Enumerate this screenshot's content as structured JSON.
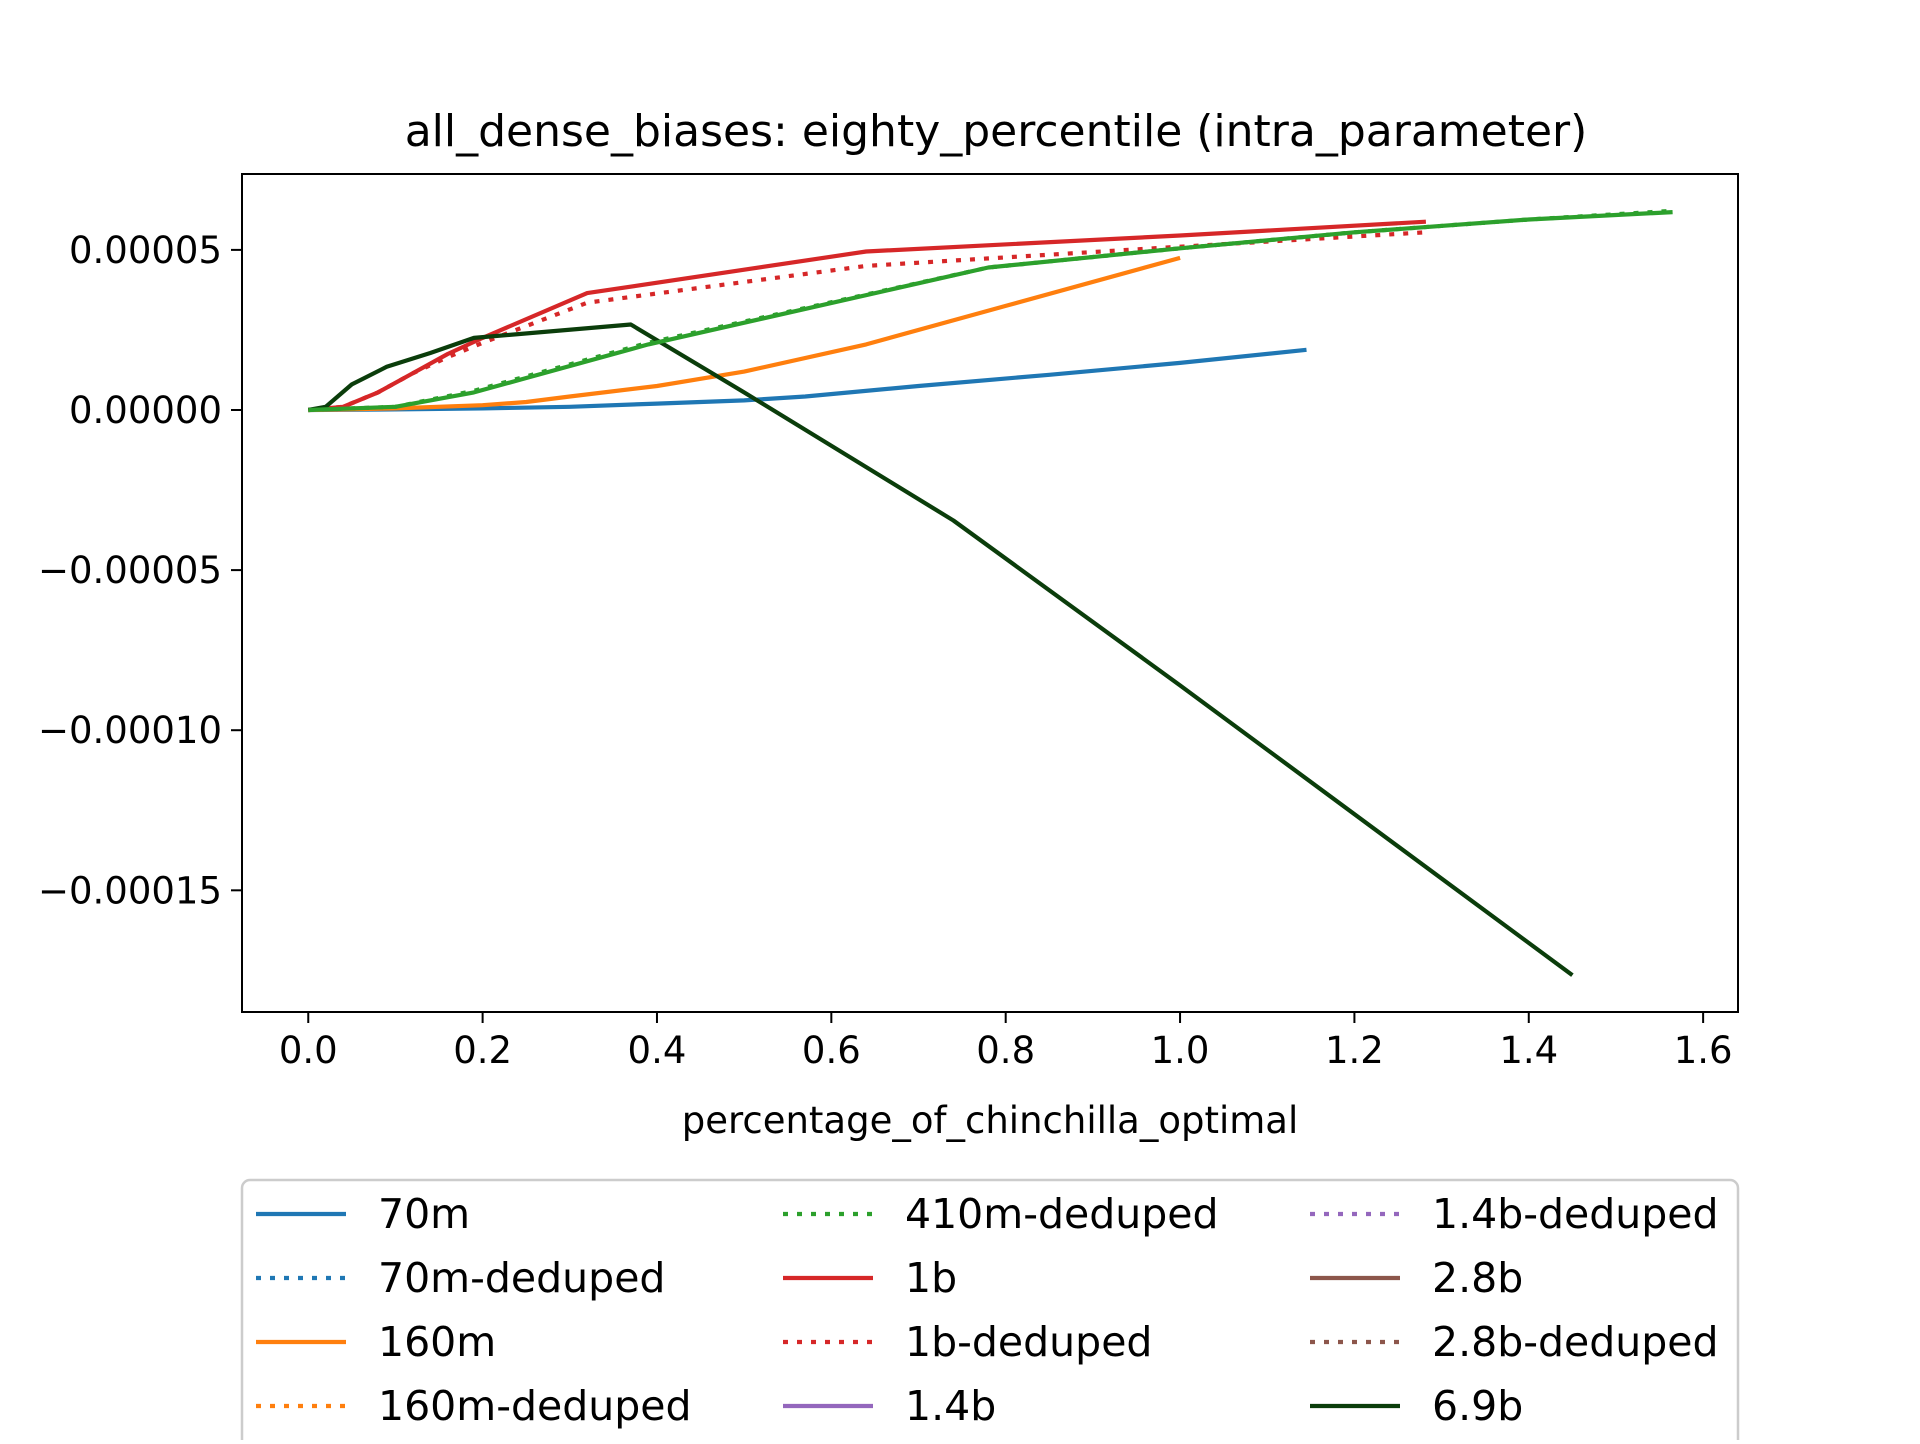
{
  "chart_data": {
    "type": "line",
    "title": "all_dense_biases: eighty_percentile (intra_parameter)",
    "xlabel": "percentage_of_chinchilla_optimal",
    "ylabel": "",
    "xlim": [
      -0.076,
      1.64
    ],
    "ylim": [
      -0.000188,
      7.37e-05
    ],
    "x_ticks": [
      {
        "value": 0.0,
        "label": "0.0"
      },
      {
        "value": 0.2,
        "label": "0.2"
      },
      {
        "value": 0.4,
        "label": "0.4"
      },
      {
        "value": 0.6,
        "label": "0.6"
      },
      {
        "value": 0.8,
        "label": "0.8"
      },
      {
        "value": 1.0,
        "label": "1.0"
      },
      {
        "value": 1.2,
        "label": "1.2"
      },
      {
        "value": 1.4,
        "label": "1.4"
      },
      {
        "value": 1.6,
        "label": "1.6"
      }
    ],
    "y_ticks": [
      {
        "value": 5e-05,
        "label": "0.00005"
      },
      {
        "value": 0.0,
        "label": "0.00000"
      },
      {
        "value": -5e-05,
        "label": "−0.00005"
      },
      {
        "value": -0.0001,
        "label": "−0.00010"
      },
      {
        "value": -0.00015,
        "label": "−0.00015"
      }
    ],
    "grid": false,
    "legend_position": "below",
    "series": [
      {
        "name": "70m",
        "color": "#1f77b4",
        "dash": "solid",
        "x": [
          0,
          0.1,
          0.2,
          0.3,
          0.4,
          0.5,
          0.57,
          0.7,
          0.85,
          1.0,
          1.145
        ],
        "y": [
          0,
          2e-07,
          5e-07,
          1e-06,
          2e-06,
          3e-06,
          4.2e-06,
          7.5e-06,
          1.1e-05,
          1.47e-05,
          1.88e-05
        ]
      },
      {
        "name": "70m-deduped",
        "color": "#1f77b4",
        "dash": "dotted",
        "x": [],
        "y": []
      },
      {
        "name": "160m",
        "color": "#ff7f0e",
        "dash": "solid",
        "x": [
          0,
          0.1,
          0.2,
          0.25,
          0.3,
          0.4,
          0.5,
          0.64,
          0.8,
          1.0
        ],
        "y": [
          0,
          5e-07,
          1.5e-06,
          2.5e-06,
          4.2e-06,
          7.5e-06,
          1.2e-05,
          2.05e-05,
          3.25e-05,
          4.75e-05
        ]
      },
      {
        "name": "160m-deduped",
        "color": "#ff7f0e",
        "dash": "dotted",
        "x": [],
        "y": []
      },
      {
        "name": "410m-deduped",
        "color": "#2ca02c",
        "dash": "dotted",
        "x": [
          0,
          0.1,
          0.19,
          0.39,
          0.78,
          1.0,
          1.2,
          1.4,
          1.565
        ],
        "y": [
          0,
          1e-06,
          6e-06,
          2.1e-05,
          4.45e-05,
          5.05e-05,
          5.55e-05,
          5.95e-05,
          6.22e-05
        ]
      },
      {
        "name": "1b",
        "color": "#d62728",
        "dash": "solid",
        "x": [
          0,
          0.04,
          0.08,
          0.12,
          0.16,
          0.2,
          0.32,
          0.64,
          1.0,
          1.282
        ],
        "y": [
          0,
          1e-06,
          5.5e-06,
          1.15e-05,
          1.75e-05,
          2.25e-05,
          3.65e-05,
          4.95e-05,
          5.45e-05,
          5.88e-05
        ]
      },
      {
        "name": "1b-deduped",
        "color": "#d62728",
        "dash": "dotted",
        "x": [
          0,
          0.04,
          0.08,
          0.12,
          0.16,
          0.2,
          0.32,
          0.64,
          1.0,
          1.282
        ],
        "y": [
          0,
          1e-06,
          5.5e-06,
          1.15e-05,
          1.65e-05,
          2.1e-05,
          3.35e-05,
          4.5e-05,
          5.1e-05,
          5.55e-05
        ]
      },
      {
        "name": "1.4b",
        "color": "#9467bd",
        "dash": "solid",
        "x": [],
        "y": []
      },
      {
        "name": "1.4b-deduped",
        "color": "#9467bd",
        "dash": "dotted",
        "x": [],
        "y": []
      },
      {
        "name": "2.8b",
        "color": "#8c564b",
        "dash": "solid",
        "x": [],
        "y": []
      },
      {
        "name": "2.8b-deduped",
        "color": "#8c564b",
        "dash": "dotted",
        "x": [],
        "y": []
      },
      {
        "name": "6.9b",
        "color": "#0b3d0b",
        "dash": "solid",
        "x": [
          0,
          0.02,
          0.05,
          0.09,
          0.14,
          0.19,
          0.37,
          0.5,
          0.74,
          1.0,
          1.45
        ],
        "y": [
          0,
          1e-06,
          8e-06,
          1.35e-05,
          1.78e-05,
          2.25e-05,
          2.67e-05,
          5.5e-06,
          -3.45e-05,
          -8.6e-05,
          -0.0001765
        ]
      },
      {
        "name": "green-solid",
        "legend": false,
        "color": "#2ca02c",
        "dash": "solid",
        "x": [
          0,
          0.1,
          0.19,
          0.39,
          0.78,
          1.0,
          1.2,
          1.4,
          1.565
        ],
        "y": [
          0,
          1e-06,
          5.5e-06,
          2.05e-05,
          4.45e-05,
          5.05e-05,
          5.55e-05,
          5.95e-05,
          6.18e-05
        ]
      }
    ]
  }
}
